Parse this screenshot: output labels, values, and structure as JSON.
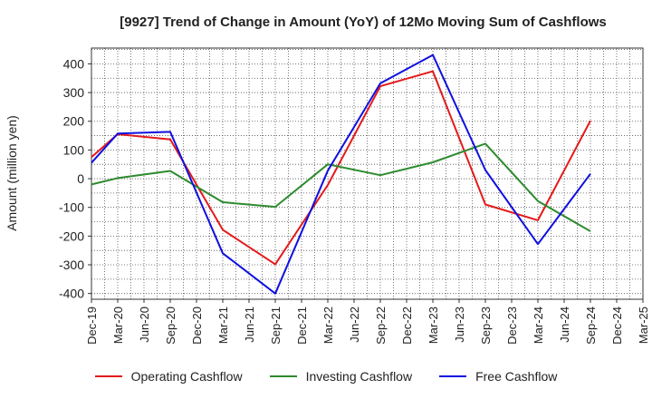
{
  "chart_data": {
    "type": "line",
    "title": "[9927]  Trend of Change in Amount (YoY) of 12Mo Moving Sum of Cashflows",
    "xlabel": "",
    "ylabel": "Amount (million yen)",
    "ylim": [
      -420,
      455
    ],
    "yticks": [
      400,
      300,
      200,
      100,
      0,
      -100,
      -200,
      -300,
      -400
    ],
    "grid": true,
    "legend_position": "bottom",
    "categories": [
      "Dec-19",
      "Mar-20",
      "Jun-20",
      "Sep-20",
      "Dec-20",
      "Mar-21",
      "Jun-21",
      "Sep-21",
      "Dec-21",
      "Mar-22",
      "Jun-22",
      "Sep-22",
      "Dec-22",
      "Mar-23",
      "Jun-23",
      "Sep-23",
      "Dec-23",
      "Mar-24",
      "Jun-24",
      "Sep-24",
      "Dec-24",
      "Mar-25"
    ],
    "series": [
      {
        "name": "Operating Cashflow",
        "color": "#e31a1c",
        "values": [
          75,
          155,
          null,
          137,
          null,
          -178,
          null,
          -298,
          null,
          -22,
          null,
          322,
          null,
          374,
          null,
          -90,
          null,
          -145,
          null,
          202,
          null,
          null
        ]
      },
      {
        "name": "Investing Cashflow",
        "color": "#2e8b2e",
        "values": [
          -20,
          2,
          null,
          27,
          null,
          -82,
          null,
          -98,
          null,
          50,
          null,
          12,
          null,
          57,
          null,
          122,
          null,
          -78,
          null,
          -183,
          null,
          null
        ]
      },
      {
        "name": "Free Cashflow",
        "color": "#1010e0",
        "values": [
          55,
          157,
          null,
          163,
          null,
          -260,
          null,
          -400,
          null,
          28,
          null,
          332,
          null,
          431,
          null,
          30,
          null,
          -228,
          null,
          17,
          null,
          null
        ]
      }
    ]
  }
}
